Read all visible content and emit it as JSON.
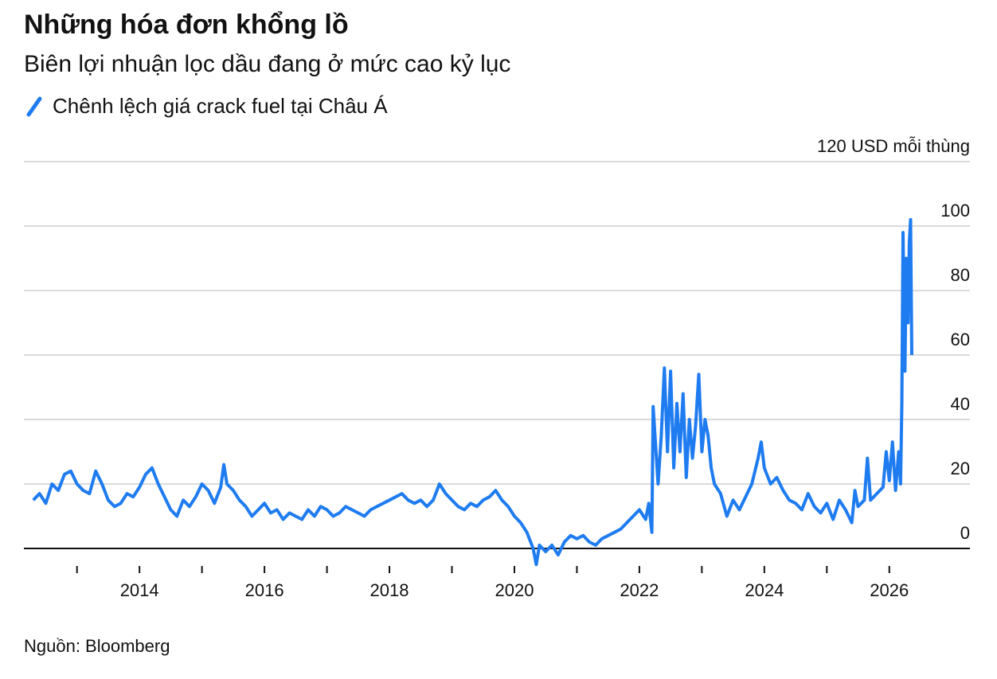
{
  "chart_data": {
    "type": "line",
    "title": "Những hóa đơn khổng lồ",
    "subtitle": "Biên lợi nhuận lọc dầu đang ở mức cao kỷ lục",
    "source": "Nguồn: Bloomberg",
    "xlim": [
      2012.15,
      2027.29
    ],
    "xticks": [
      2014,
      2016,
      2018,
      2020,
      2022,
      2024,
      2026
    ],
    "xminorticks": [
      2013,
      2015,
      2017,
      2019,
      2021,
      2023,
      2025
    ],
    "ylim": [
      -6,
      120
    ],
    "yticks": [
      0,
      20,
      40,
      60,
      80,
      100,
      {
        "value": 120,
        "label": "120 USD mỗi thùng"
      }
    ],
    "grid": true,
    "x": [
      2012.3,
      2012.4,
      2012.5,
      2012.6,
      2012.7,
      2012.8,
      2012.9,
      2013.0,
      2013.1,
      2013.2,
      2013.3,
      2013.4,
      2013.5,
      2013.6,
      2013.7,
      2013.8,
      2013.9,
      2014.0,
      2014.1,
      2014.2,
      2014.3,
      2014.4,
      2014.5,
      2014.6,
      2014.7,
      2014.8,
      2014.9,
      2015.0,
      2015.1,
      2015.2,
      2015.3,
      2015.35,
      2015.4,
      2015.5,
      2015.6,
      2015.7,
      2015.8,
      2015.9,
      2016.0,
      2016.1,
      2016.2,
      2016.3,
      2016.4,
      2016.5,
      2016.6,
      2016.7,
      2016.8,
      2016.9,
      2017.0,
      2017.1,
      2017.2,
      2017.3,
      2017.4,
      2017.5,
      2017.6,
      2017.7,
      2017.8,
      2017.9,
      2018.0,
      2018.1,
      2018.2,
      2018.3,
      2018.4,
      2018.5,
      2018.6,
      2018.7,
      2018.8,
      2018.9,
      2019.0,
      2019.1,
      2019.2,
      2019.3,
      2019.4,
      2019.5,
      2019.6,
      2019.7,
      2019.8,
      2019.9,
      2020.0,
      2020.1,
      2020.2,
      2020.3,
      2020.35,
      2020.4,
      2020.5,
      2020.6,
      2020.7,
      2020.8,
      2020.9,
      2021.0,
      2021.1,
      2021.2,
      2021.3,
      2021.4,
      2021.5,
      2021.6,
      2021.7,
      2021.8,
      2021.9,
      2022.0,
      2022.1,
      2022.15,
      2022.2,
      2022.22,
      2022.3,
      2022.35,
      2022.4,
      2022.45,
      2022.5,
      2022.55,
      2022.6,
      2022.65,
      2022.7,
      2022.75,
      2022.8,
      2022.85,
      2022.9,
      2022.95,
      2023.0,
      2023.05,
      2023.1,
      2023.15,
      2023.2,
      2023.3,
      2023.4,
      2023.5,
      2023.6,
      2023.7,
      2023.8,
      2023.9,
      2023.95,
      2024.0,
      2024.1,
      2024.2,
      2024.3,
      2024.4,
      2024.5,
      2024.6,
      2024.7,
      2024.8,
      2024.9,
      2025.0,
      2025.1,
      2025.2,
      2025.3,
      2025.4,
      2025.45,
      2025.5,
      2025.6,
      2025.65,
      2025.7,
      2025.8,
      2025.9,
      2025.95,
      2026.0,
      2026.05,
      2026.1,
      2026.15,
      2026.18,
      2026.2,
      2026.22,
      2026.25,
      2026.27,
      2026.3,
      2026.32,
      2026.34,
      2026.36
    ],
    "series": [
      {
        "name": "Chênh lệch giá crack fuel tại Châu Á",
        "color": "#1f7cf0",
        "values": [
          15,
          17,
          14,
          20,
          18,
          23,
          24,
          20,
          18,
          17,
          24,
          20,
          15,
          13,
          14,
          17,
          16,
          19,
          23,
          25,
          20,
          16,
          12,
          10,
          15,
          13,
          16,
          20,
          18,
          14,
          19,
          26,
          20,
          18,
          15,
          13,
          10,
          12,
          14,
          11,
          12,
          9,
          11,
          10,
          9,
          12,
          10,
          13,
          12,
          10,
          11,
          13,
          12,
          11,
          10,
          12,
          13,
          14,
          15,
          16,
          17,
          15,
          14,
          15,
          13,
          15,
          20,
          17,
          15,
          13,
          12,
          14,
          13,
          15,
          16,
          18,
          15,
          13,
          10,
          8,
          5,
          0,
          -5,
          1,
          -1,
          1,
          -2,
          2,
          4,
          3,
          4,
          2,
          1,
          3,
          4,
          5,
          6,
          8,
          10,
          12,
          9,
          14,
          5,
          44,
          20,
          35,
          56,
          30,
          55,
          25,
          45,
          30,
          48,
          22,
          40,
          28,
          38,
          54,
          30,
          40,
          35,
          25,
          20,
          17,
          10,
          15,
          12,
          16,
          20,
          28,
          33,
          25,
          20,
          22,
          18,
          15,
          14,
          12,
          17,
          13,
          11,
          14,
          9,
          15,
          12,
          8,
          18,
          13,
          15,
          28,
          15,
          17,
          19,
          30,
          21,
          33,
          18,
          30,
          20,
          45,
          98,
          55,
          90,
          70,
          95,
          102,
          60
        ]
      }
    ]
  }
}
